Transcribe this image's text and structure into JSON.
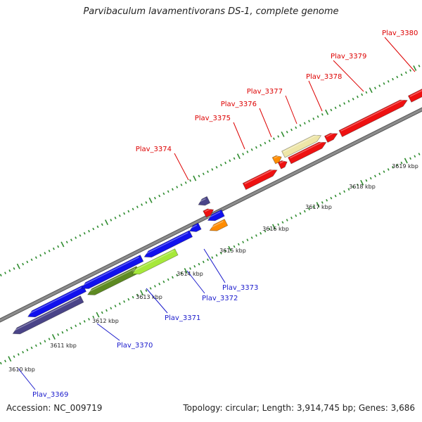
{
  "title": "Parvibaculum lavamentivorans DS-1, complete genome",
  "footer": {
    "accession": "Accession: NC_009719",
    "topology": "Topology: circular; Length: 3,914,745 bp; Genes: 3,686"
  },
  "scale_ticks": [
    {
      "label": "3610 kbp"
    },
    {
      "label": "3611 kbp"
    },
    {
      "label": "3612 kbp"
    },
    {
      "label": "3613 kbp"
    },
    {
      "label": "3614 kbp"
    },
    {
      "label": "3615 kbp"
    },
    {
      "label": "3616 kbp"
    },
    {
      "label": "3617 kbp"
    },
    {
      "label": "3618 kbp"
    },
    {
      "label": "3619 kbp"
    }
  ],
  "genes": [
    {
      "name": "Plav_3369",
      "strand": "reverse"
    },
    {
      "name": "Plav_3370",
      "strand": "reverse"
    },
    {
      "name": "Plav_3371",
      "strand": "reverse"
    },
    {
      "name": "Plav_3372",
      "strand": "reverse"
    },
    {
      "name": "Plav_3373",
      "strand": "reverse"
    },
    {
      "name": "Plav_3374",
      "strand": "forward"
    },
    {
      "name": "Plav_3375",
      "strand": "forward"
    },
    {
      "name": "Plav_3376",
      "strand": "forward"
    },
    {
      "name": "Plav_3377",
      "strand": "forward"
    },
    {
      "name": "Plav_3378",
      "strand": "forward"
    },
    {
      "name": "Plav_3379",
      "strand": "forward"
    },
    {
      "name": "Plav_3380",
      "strand": "forward"
    }
  ],
  "colors": {
    "forward_label": "#dd0000",
    "reverse_label": "#1a1acc",
    "backbone": "#8c8c8c",
    "tick": "#2e8b2e",
    "red": "#ee1111",
    "blue": "#1111ee",
    "navy": "#4a4488",
    "olive": "#5e8a22",
    "lime": "#a6e83a",
    "orange": "#ff8c00",
    "khaki": "#eee6a8"
  }
}
